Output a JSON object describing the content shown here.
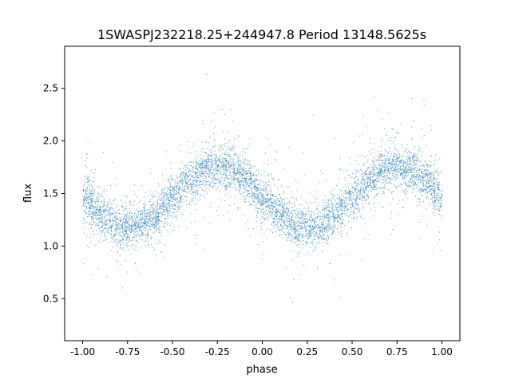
{
  "chart_data": {
    "type": "scatter",
    "title": "1SWASPJ232218.25+244947.8 Period 13148.5625s",
    "xlabel": "phase",
    "ylabel": "flux",
    "xlim": [
      -1.1,
      1.1
    ],
    "ylim": [
      0.1,
      2.9
    ],
    "xticks": [
      "-1.00",
      "-0.75",
      "-0.50",
      "-0.25",
      "0.00",
      "0.25",
      "0.50",
      "0.75",
      "1.00"
    ],
    "yticks": [
      "0.5",
      "1.0",
      "1.5",
      "2.0",
      "2.5"
    ],
    "grid": false,
    "legend": "none",
    "marker_color": "#1f77b4",
    "binned_mean_flux": {
      "phase": [
        -1.0,
        -0.9,
        -0.8,
        -0.7,
        -0.6,
        -0.5,
        -0.4,
        -0.3,
        -0.2,
        -0.1,
        0.0,
        0.1,
        0.2,
        0.3,
        0.4,
        0.5,
        0.6,
        0.7,
        0.8,
        0.9,
        1.0
      ],
      "flux": [
        1.47,
        1.3,
        1.19,
        1.19,
        1.3,
        1.47,
        1.64,
        1.75,
        1.75,
        1.64,
        1.47,
        1.3,
        1.19,
        1.19,
        1.3,
        1.47,
        1.64,
        1.75,
        1.75,
        1.64,
        1.47
      ]
    },
    "flux_scatter_sigma": 0.1
  }
}
